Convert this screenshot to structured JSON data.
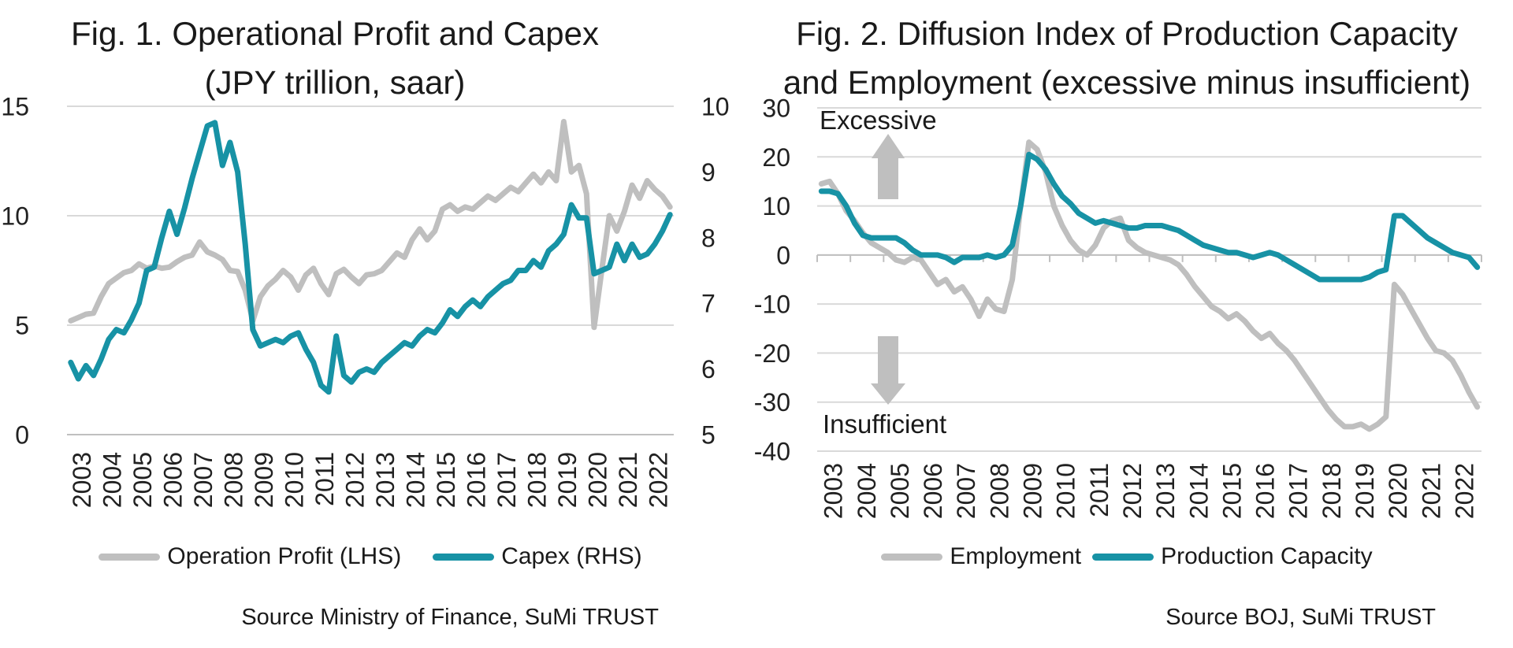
{
  "page": {
    "background_color": "#ffffff",
    "accent_teal": "#1792a5",
    "neutral_gray": "#bfbfbf",
    "gridline_color": "#d9d9d9",
    "axis_color": "#bfbfbf"
  },
  "chart_data": [
    {
      "type": "line",
      "title_line1": "Fig. 1. Operational Profit and Capex",
      "title_line2": "(JPY trillion, saar)",
      "x_frequency": "quarterly",
      "x_tick_labels": [
        "2003",
        "2004",
        "2005",
        "2006",
        "2007",
        "2008",
        "2009",
        "2010",
        "2011",
        "2012",
        "2013",
        "2014",
        "2015",
        "2016",
        "2017",
        "2018",
        "2019",
        "2020",
        "2021",
        "2022"
      ],
      "grid": "horizontal",
      "legend_position": "bottom",
      "left_axis": {
        "min": 0,
        "max": 15,
        "label_values": [
          15,
          10,
          5,
          0
        ]
      },
      "right_axis": {
        "min": 5,
        "max": 10,
        "label_values": [
          10,
          9,
          8,
          7,
          6,
          5
        ]
      },
      "series": [
        {
          "name": "Operation Profit (LHS)",
          "axis": "left",
          "color": "#bfbfbf",
          "values": [
            5.2,
            5.35,
            5.5,
            5.55,
            6.3,
            6.9,
            7.15,
            7.4,
            7.5,
            7.8,
            7.6,
            7.7,
            7.6,
            7.65,
            7.9,
            8.1,
            8.2,
            8.8,
            8.35,
            8.2,
            8.0,
            7.5,
            7.45,
            6.6,
            5.2,
            6.3,
            6.8,
            7.1,
            7.5,
            7.2,
            6.6,
            7.3,
            7.6,
            6.9,
            6.4,
            7.35,
            7.55,
            7.2,
            6.9,
            7.3,
            7.35,
            7.5,
            7.9,
            8.3,
            8.1,
            8.9,
            9.4,
            8.9,
            9.3,
            10.3,
            10.5,
            10.2,
            10.4,
            10.3,
            10.6,
            10.9,
            10.7,
            11.0,
            11.3,
            11.1,
            11.5,
            11.9,
            11.5,
            12.0,
            11.6,
            14.3,
            12.0,
            12.3,
            11.0,
            4.9,
            7.5,
            10.0,
            9.3,
            10.2,
            11.4,
            10.8,
            11.6,
            11.2,
            10.9,
            10.4
          ]
        },
        {
          "name": "Capex (RHS)",
          "axis": "right",
          "color": "#1792a5",
          "values": [
            6.1,
            5.85,
            6.05,
            5.9,
            6.15,
            6.45,
            6.6,
            6.55,
            6.75,
            7.0,
            7.5,
            7.55,
            8.0,
            8.4,
            8.05,
            8.45,
            8.9,
            9.3,
            9.7,
            9.75,
            9.1,
            9.45,
            9.0,
            7.9,
            6.6,
            6.35,
            6.4,
            6.45,
            6.4,
            6.5,
            6.55,
            6.3,
            6.1,
            5.75,
            5.65,
            6.5,
            5.9,
            5.8,
            5.95,
            6.0,
            5.95,
            6.1,
            6.2,
            6.3,
            6.4,
            6.35,
            6.5,
            6.6,
            6.55,
            6.7,
            6.9,
            6.8,
            6.95,
            7.05,
            6.95,
            7.1,
            7.2,
            7.3,
            7.35,
            7.5,
            7.5,
            7.65,
            7.55,
            7.8,
            7.9,
            8.05,
            8.5,
            8.3,
            8.3,
            7.45,
            7.5,
            7.55,
            7.9,
            7.65,
            7.9,
            7.7,
            7.75,
            7.9,
            8.1,
            8.35
          ]
        }
      ],
      "source": "Source Ministry of Finance, SuMi TRUST"
    },
    {
      "type": "line",
      "title_line1": "Fig. 2. Diffusion Index of Production Capacity",
      "title_line2": "and Employment (excessive minus insufficient)",
      "x_frequency": "quarterly",
      "x_tick_labels": [
        "2003",
        "2004",
        "2005",
        "2006",
        "2007",
        "2008",
        "2009",
        "2010",
        "2011",
        "2012",
        "2013",
        "2014",
        "2015",
        "2016",
        "2017",
        "2018",
        "2019",
        "2020",
        "2021",
        "2022"
      ],
      "grid": "horizontal",
      "legend_position": "bottom",
      "left_axis": {
        "min": -40,
        "max": 30,
        "label_values": [
          30,
          20,
          10,
          0,
          -10,
          -20,
          -30,
          -40
        ]
      },
      "annotations": {
        "excessive_label": "Excessive",
        "insufficient_label": "Insufficient"
      },
      "series": [
        {
          "name": "Employment",
          "axis": "left",
          "color": "#bfbfbf",
          "values": [
            14.5,
            15,
            12.5,
            9,
            7,
            4.5,
            2.5,
            1.5,
            0.5,
            -1,
            -1.5,
            -0.5,
            -1,
            -3.5,
            -6,
            -5,
            -7.5,
            -6.5,
            -9,
            -12.5,
            -9,
            -11,
            -11.5,
            -5,
            10,
            23,
            21.5,
            17,
            10,
            6,
            3,
            1,
            0,
            2,
            5.5,
            7,
            7.5,
            3,
            1.5,
            0.5,
            0,
            -0.5,
            -1,
            -2,
            -4,
            -6.5,
            -8.5,
            -10.5,
            -11.5,
            -13,
            -12,
            -13.5,
            -15.5,
            -17,
            -16,
            -18,
            -19.5,
            -21.5,
            -24,
            -26.5,
            -29,
            -31.5,
            -33.5,
            -35,
            -35,
            -34.5,
            -35.5,
            -34.5,
            -33,
            -6,
            -8,
            -11,
            -14,
            -17,
            -19.5,
            -20,
            -21.5,
            -24.5,
            -28,
            -31
          ]
        },
        {
          "name": "Production Capacity",
          "axis": "left",
          "color": "#1792a5",
          "values": [
            13,
            13,
            12.5,
            10,
            6.5,
            4,
            3.5,
            3.5,
            3.5,
            3.5,
            2.5,
            1,
            0,
            0,
            0,
            -0.5,
            -1.5,
            -0.5,
            -0.5,
            -0.5,
            0,
            -0.5,
            0,
            2,
            10,
            20.5,
            19.5,
            17.5,
            14.5,
            12,
            10.5,
            8.5,
            7.5,
            6.5,
            7,
            6.5,
            6,
            5.5,
            5.5,
            6,
            6,
            6,
            5.5,
            5,
            4,
            3,
            2,
            1.5,
            1,
            0.5,
            0.5,
            0,
            -0.5,
            0,
            0.5,
            0,
            -1,
            -2,
            -3,
            -4,
            -5,
            -5,
            -5,
            -5,
            -5,
            -5,
            -4.5,
            -3.5,
            -3,
            8,
            8,
            6.5,
            5,
            3.5,
            2.5,
            1.5,
            0.5,
            0,
            -0.5,
            -2.5
          ]
        }
      ],
      "source": "Source BOJ, SuMi TRUST"
    }
  ]
}
